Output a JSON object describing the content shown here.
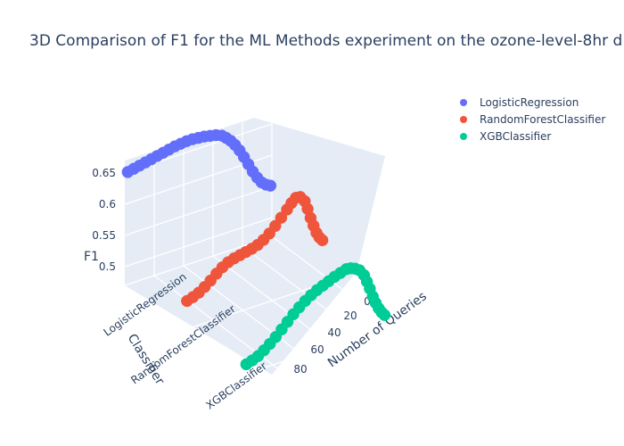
{
  "chart_data": {
    "type": "scatter",
    "title": "3D Comparison of F1 for the ML Methods experiment on the ozone-level-8hr d",
    "axes": {
      "x": {
        "title": "Number of Queries",
        "range": [
          0,
          100
        ],
        "ticks": [
          "0",
          "20",
          "40",
          "60",
          "80"
        ]
      },
      "y": {
        "title": "Classifier",
        "categories": [
          "LogisticRegression",
          "RandomForestClassifier",
          "XGBClassifier"
        ]
      },
      "z": {
        "title": "F1",
        "range": [
          0.47,
          0.67
        ],
        "ticks": [
          "0.5",
          "0.55",
          "0.6",
          "0.65"
        ]
      }
    },
    "legend_placement": "top-right",
    "colors": {
      "LogisticRegression": "#636efa",
      "RandomForestClassifier": "#EF553B",
      "XGBClassifier": "#00cc96"
    },
    "series": [
      {
        "name": "LogisticRegression",
        "points": [
          {
            "x": 98,
            "y": 0.65
          },
          {
            "x": 94,
            "y": 0.652
          },
          {
            "x": 90,
            "y": 0.654
          },
          {
            "x": 86,
            "y": 0.656
          },
          {
            "x": 82,
            "y": 0.658
          },
          {
            "x": 78,
            "y": 0.66
          },
          {
            "x": 74,
            "y": 0.662
          },
          {
            "x": 70,
            "y": 0.664
          },
          {
            "x": 66,
            "y": 0.666
          },
          {
            "x": 62,
            "y": 0.667
          },
          {
            "x": 58,
            "y": 0.668
          },
          {
            "x": 54,
            "y": 0.668
          },
          {
            "x": 50,
            "y": 0.667
          },
          {
            "x": 46,
            "y": 0.666
          },
          {
            "x": 42,
            "y": 0.664
          },
          {
            "x": 38,
            "y": 0.662
          },
          {
            "x": 34,
            "y": 0.658
          },
          {
            "x": 31,
            "y": 0.652
          },
          {
            "x": 28,
            "y": 0.645
          },
          {
            "x": 25,
            "y": 0.636
          },
          {
            "x": 22,
            "y": 0.625
          },
          {
            "x": 19,
            "y": 0.612
          },
          {
            "x": 16,
            "y": 0.598
          },
          {
            "x": 13,
            "y": 0.584
          },
          {
            "x": 10,
            "y": 0.572
          },
          {
            "x": 7,
            "y": 0.562
          },
          {
            "x": 4,
            "y": 0.556
          },
          {
            "x": 1,
            "y": 0.552
          }
        ]
      },
      {
        "name": "RandomForestClassifier",
        "points": [
          {
            "x": 98,
            "y": 0.515
          },
          {
            "x": 94,
            "y": 0.518
          },
          {
            "x": 90,
            "y": 0.522
          },
          {
            "x": 86,
            "y": 0.528
          },
          {
            "x": 82,
            "y": 0.535
          },
          {
            "x": 78,
            "y": 0.543
          },
          {
            "x": 74,
            "y": 0.55
          },
          {
            "x": 70,
            "y": 0.555
          },
          {
            "x": 66,
            "y": 0.558
          },
          {
            "x": 62,
            "y": 0.56
          },
          {
            "x": 58,
            "y": 0.562
          },
          {
            "x": 54,
            "y": 0.564
          },
          {
            "x": 50,
            "y": 0.567
          },
          {
            "x": 46,
            "y": 0.572
          },
          {
            "x": 42,
            "y": 0.579
          },
          {
            "x": 38,
            "y": 0.588
          },
          {
            "x": 34,
            "y": 0.598
          },
          {
            "x": 30,
            "y": 0.608
          },
          {
            "x": 27,
            "y": 0.616
          },
          {
            "x": 24,
            "y": 0.622
          },
          {
            "x": 21,
            "y": 0.621
          },
          {
            "x": 18,
            "y": 0.612
          },
          {
            "x": 16,
            "y": 0.598
          },
          {
            "x": 14,
            "y": 0.582
          },
          {
            "x": 12,
            "y": 0.568
          },
          {
            "x": 10,
            "y": 0.555
          },
          {
            "x": 8,
            "y": 0.546
          },
          {
            "x": 6,
            "y": 0.54
          }
        ]
      },
      {
        "name": "XGBClassifier",
        "points": [
          {
            "x": 98,
            "y": 0.485
          },
          {
            "x": 94,
            "y": 0.488
          },
          {
            "x": 90,
            "y": 0.492
          },
          {
            "x": 86,
            "y": 0.498
          },
          {
            "x": 82,
            "y": 0.505
          },
          {
            "x": 78,
            "y": 0.513
          },
          {
            "x": 74,
            "y": 0.522
          },
          {
            "x": 70,
            "y": 0.531
          },
          {
            "x": 66,
            "y": 0.54
          },
          {
            "x": 62,
            "y": 0.548
          },
          {
            "x": 58,
            "y": 0.555
          },
          {
            "x": 54,
            "y": 0.561
          },
          {
            "x": 50,
            "y": 0.566
          },
          {
            "x": 46,
            "y": 0.57
          },
          {
            "x": 42,
            "y": 0.574
          },
          {
            "x": 38,
            "y": 0.578
          },
          {
            "x": 34,
            "y": 0.581
          },
          {
            "x": 30,
            "y": 0.584
          },
          {
            "x": 27,
            "y": 0.583
          },
          {
            "x": 24,
            "y": 0.58
          },
          {
            "x": 21,
            "y": 0.575
          },
          {
            "x": 18,
            "y": 0.565
          },
          {
            "x": 16,
            "y": 0.553
          },
          {
            "x": 14,
            "y": 0.54
          },
          {
            "x": 12,
            "y": 0.526
          },
          {
            "x": 10,
            "y": 0.514
          },
          {
            "x": 8,
            "y": 0.504
          },
          {
            "x": 6,
            "y": 0.496
          },
          {
            "x": 4,
            "y": 0.49
          }
        ]
      }
    ]
  }
}
